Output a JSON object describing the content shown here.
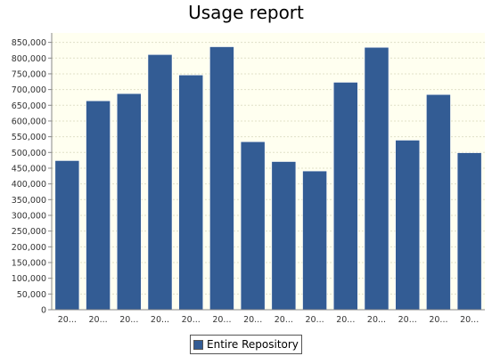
{
  "chart_data": {
    "type": "bar",
    "title": "Usage report",
    "xlabel": "",
    "ylabel": "",
    "categories": [
      "20...",
      "20...",
      "20...",
      "20...",
      "20...",
      "20...",
      "20...",
      "20...",
      "20...",
      "20...",
      "20...",
      "20...",
      "20...",
      "20..."
    ],
    "series": [
      {
        "name": "Entire Repository",
        "color": "#335c94",
        "values": [
          474000,
          664000,
          687000,
          811000,
          746000,
          836000,
          534000,
          471000,
          441000,
          723000,
          834000,
          539000,
          684000,
          499000
        ]
      }
    ],
    "ylim": [
      0,
      880000
    ],
    "yticks": [
      0,
      50000,
      100000,
      150000,
      200000,
      250000,
      300000,
      350000,
      400000,
      450000,
      500000,
      550000,
      600000,
      650000,
      700000,
      750000,
      800000,
      850000
    ],
    "ytick_labels": [
      "0",
      "50,000",
      "100,000",
      "150,000",
      "200,000",
      "250,000",
      "300,000",
      "350,000",
      "400,000",
      "450,000",
      "500,000",
      "550,000",
      "600,000",
      "650,000",
      "700,000",
      "750,000",
      "800,000",
      "850,000"
    ],
    "grid": true,
    "plot_background": "#fffff0",
    "legend_position": "bottom"
  }
}
